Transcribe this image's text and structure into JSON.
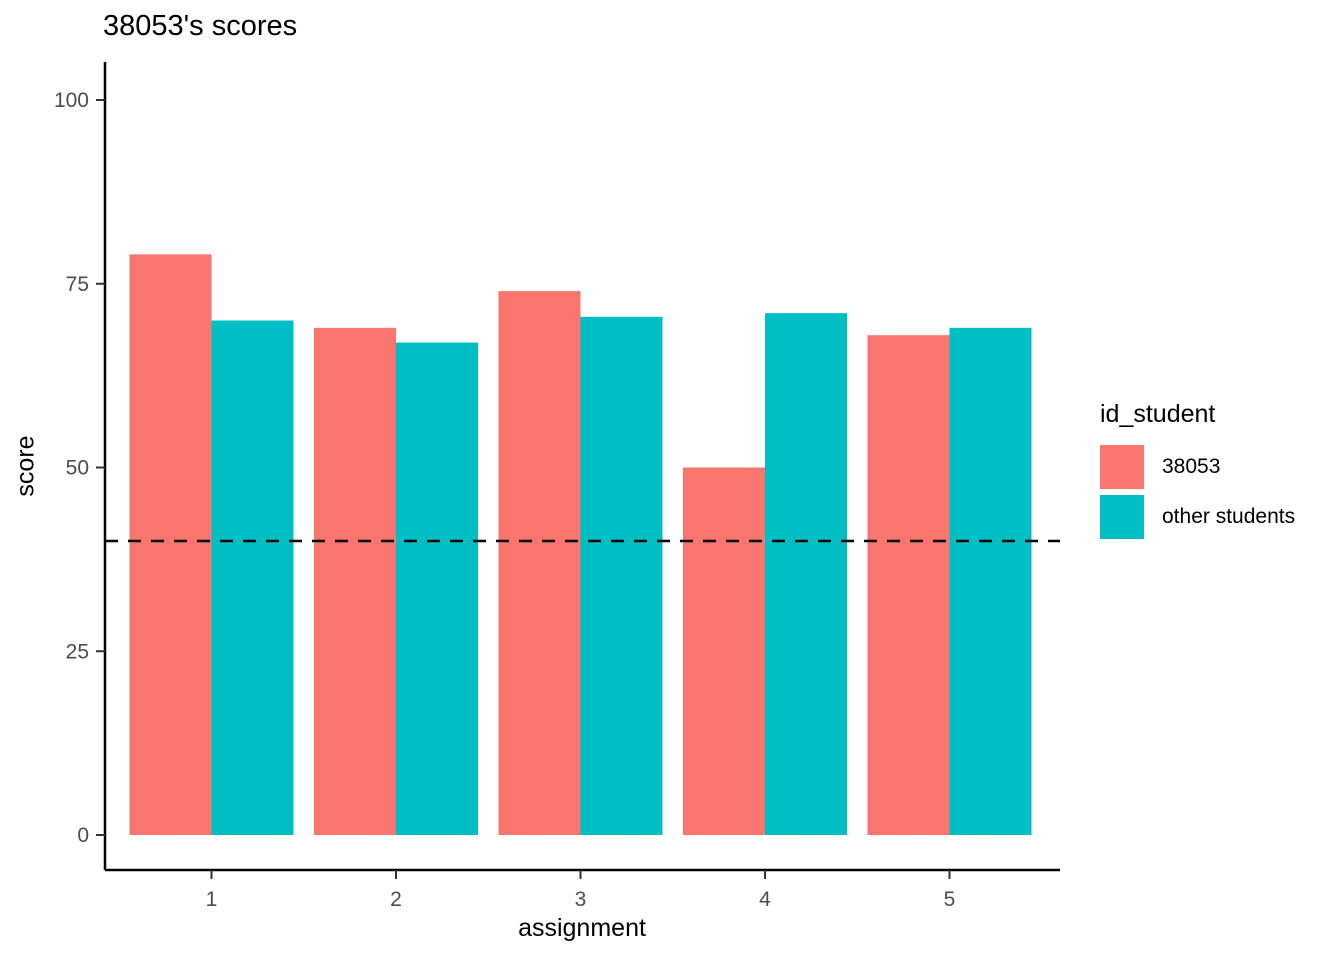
{
  "title": "38053's scores",
  "chart_data": {
    "type": "bar",
    "title": "38053's scores",
    "xlabel": "assignment",
    "ylabel": "score",
    "categories": [
      "1",
      "2",
      "3",
      "4",
      "5"
    ],
    "series": [
      {
        "name": "38053",
        "color": "#F8766D",
        "values": [
          79,
          69,
          74,
          50,
          68
        ]
      },
      {
        "name": "other students",
        "color": "#00BFC4",
        "values": [
          70,
          67,
          70.5,
          71,
          69
        ]
      }
    ],
    "yticks": [
      0,
      25,
      50,
      75,
      100
    ],
    "ylim": [
      0,
      100
    ],
    "reference_line": {
      "y": 40,
      "style": "dashed",
      "color": "#000000"
    },
    "legend_title": "id_student",
    "legend_position": "right",
    "grid": false,
    "background": "#FFFFFF"
  }
}
